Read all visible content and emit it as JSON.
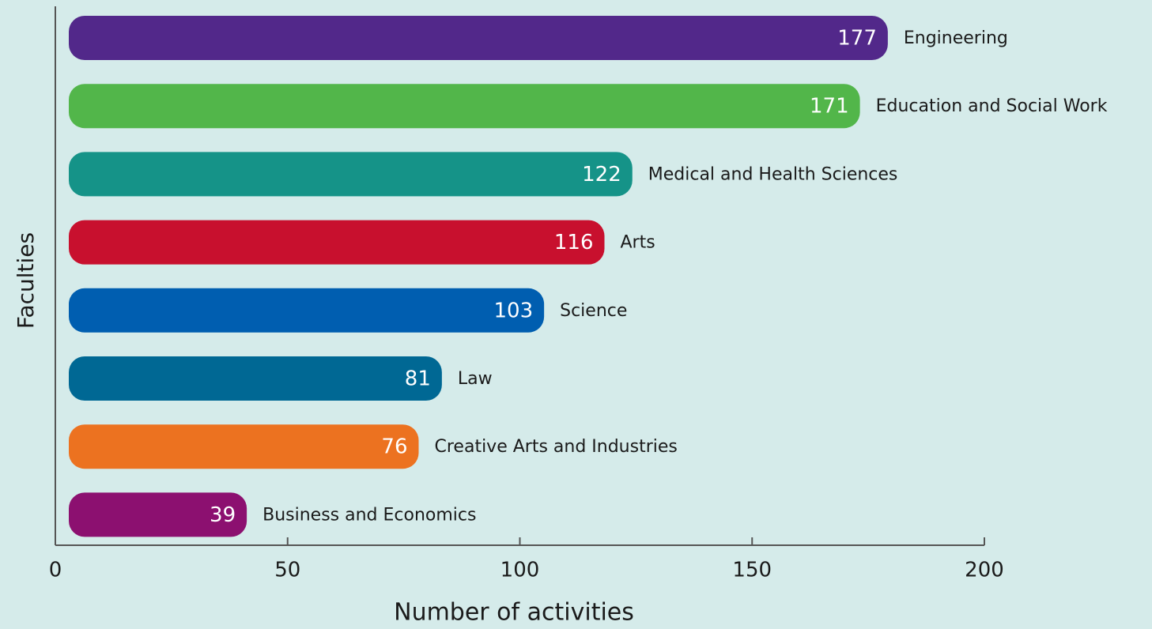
{
  "chart_data": {
    "type": "bar",
    "orientation": "horizontal",
    "x_label": "Number of activities",
    "y_label": "Faculties",
    "categories": [
      "Engineering",
      "Education and Social Work",
      "Medical and Health Sciences",
      "Arts",
      "Science",
      "Law",
      "Creative Arts and Industries",
      "Business and Economics"
    ],
    "values": [
      177,
      171,
      122,
      116,
      103,
      81,
      76,
      39
    ],
    "colors": [
      "#52288a",
      "#52b64a",
      "#159388",
      "#c8102e",
      "#005eb0",
      "#006894",
      "#ec7220",
      "#8c1070"
    ],
    "xlim": [
      0,
      200
    ],
    "xticks": [
      0,
      50,
      100,
      150,
      200
    ],
    "grid": false
  }
}
